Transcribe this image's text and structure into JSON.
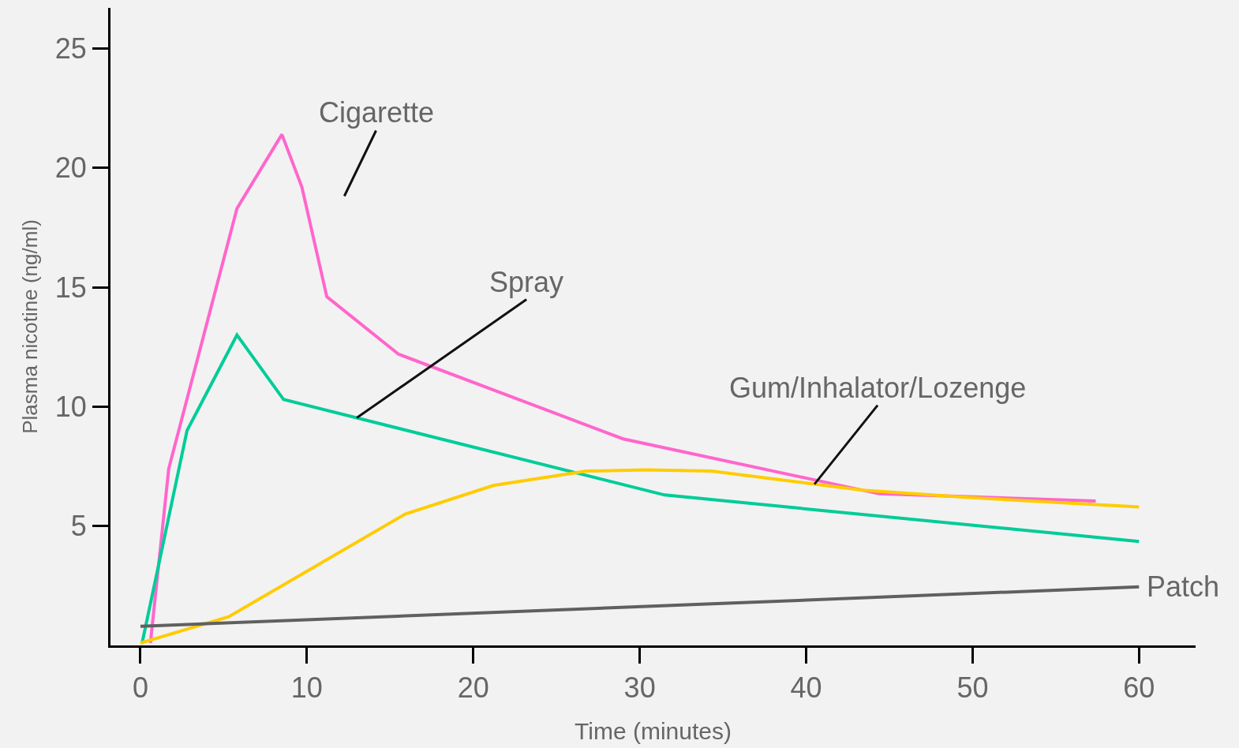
{
  "chart_data": {
    "type": "line",
    "xlabel": "Time (minutes)",
    "ylabel": "Plasma nicotine (ng/ml)",
    "xlim": [
      -1.8,
      63.4
    ],
    "ylim": [
      0,
      26.7
    ],
    "xticks": [
      0,
      10,
      20,
      30,
      40,
      50,
      60
    ],
    "yticks": [
      5,
      10,
      15,
      20,
      25
    ],
    "grid": false,
    "legend": false,
    "marker": "none",
    "line_style": "solid",
    "series": [
      {
        "name": "Cigarette",
        "color": "#ff66cc",
        "x": [
          0.6,
          1.7,
          5.8,
          8.5,
          9.7,
          11.2,
          15.5,
          29,
          44.4,
          57.4
        ],
        "values": [
          0.1,
          7.4,
          18.3,
          21.4,
          19.2,
          14.6,
          12.2,
          8.65,
          6.35,
          6.05
        ]
      },
      {
        "name": "Spray",
        "color": "#00cc99",
        "x": [
          0.1,
          2.8,
          5.8,
          8.6,
          31.5,
          60
        ],
        "values": [
          0.1,
          9.0,
          13.0,
          10.3,
          6.3,
          4.35
        ]
      },
      {
        "name": "Gum/Inhalator/Lozenge",
        "color": "#ffcc00",
        "x": [
          0,
          5.3,
          15.9,
          21.2,
          26.8,
          30.4,
          34.3,
          43.4,
          49.6,
          60
        ],
        "values": [
          0.1,
          1.2,
          5.5,
          6.7,
          7.3,
          7.35,
          7.3,
          6.5,
          6.2,
          5.8
        ]
      },
      {
        "name": "Patch",
        "color": "#606060",
        "x": [
          0,
          60
        ],
        "values": [
          0.8,
          2.45
        ]
      }
    ]
  }
}
